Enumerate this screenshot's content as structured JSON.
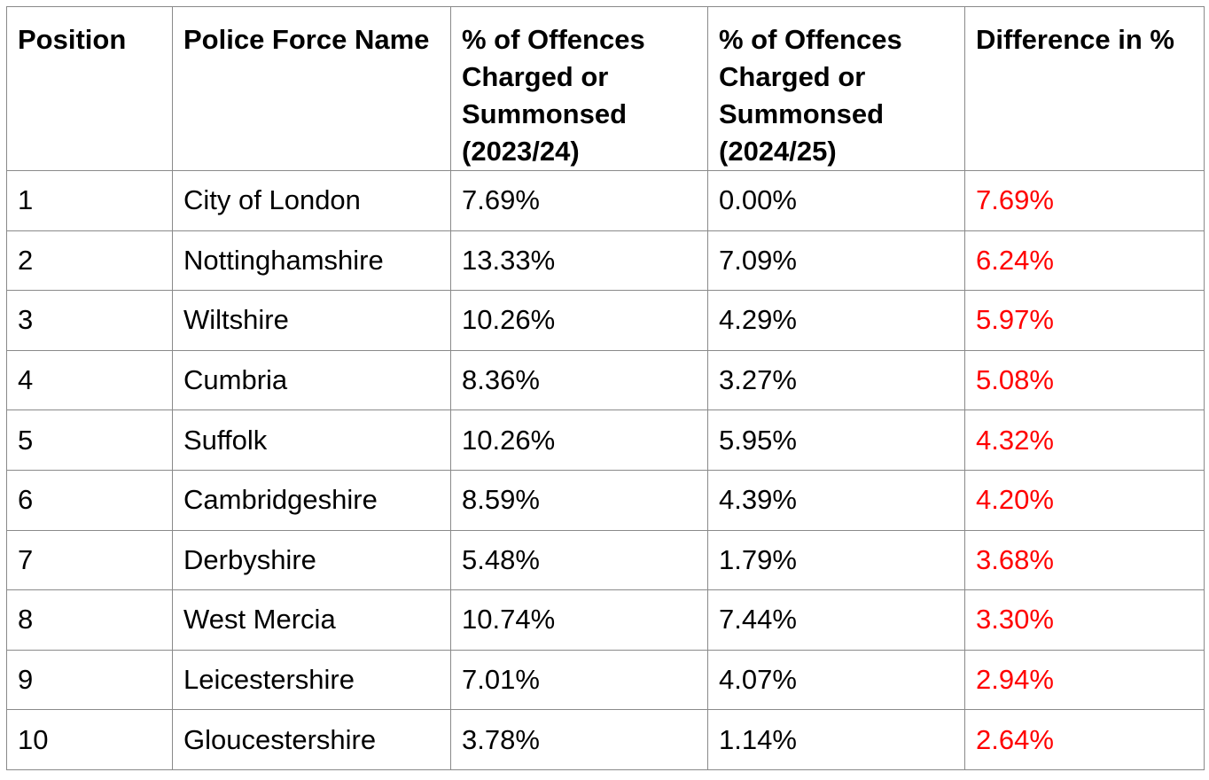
{
  "table": {
    "headers": [
      "Position",
      "Police Force Name",
      "% of Offences Charged or Summonsed (2023/24)",
      "% of Offences Charged or Summonsed (2024/25)",
      "Difference in %"
    ],
    "rows": [
      [
        "1",
        "City of London",
        "7.69%",
        "0.00%",
        "7.69%"
      ],
      [
        "2",
        "Nottinghamshire",
        "13.33%",
        "7.09%",
        "6.24%"
      ],
      [
        "3",
        "Wiltshire",
        "10.26%",
        "4.29%",
        "5.97%"
      ],
      [
        "4",
        "Cumbria",
        "8.36%",
        "3.27%",
        "5.08%"
      ],
      [
        "5",
        "Suffolk",
        "10.26%",
        "5.95%",
        "4.32%"
      ],
      [
        "6",
        "Cambridgeshire",
        "8.59%",
        "4.39%",
        "4.20%"
      ],
      [
        "7",
        "Derbyshire",
        "5.48%",
        "1.79%",
        "3.68%"
      ],
      [
        "8",
        "West Mercia",
        "10.74%",
        "7.44%",
        "3.30%"
      ],
      [
        "9",
        "Leicestershire",
        "7.01%",
        "4.07%",
        "2.94%"
      ],
      [
        "10",
        "Gloucestershire",
        "3.78%",
        "1.14%",
        "2.64%"
      ]
    ],
    "colors": {
      "difference_text": "#ff0000",
      "border": "#8a8a8a"
    }
  }
}
